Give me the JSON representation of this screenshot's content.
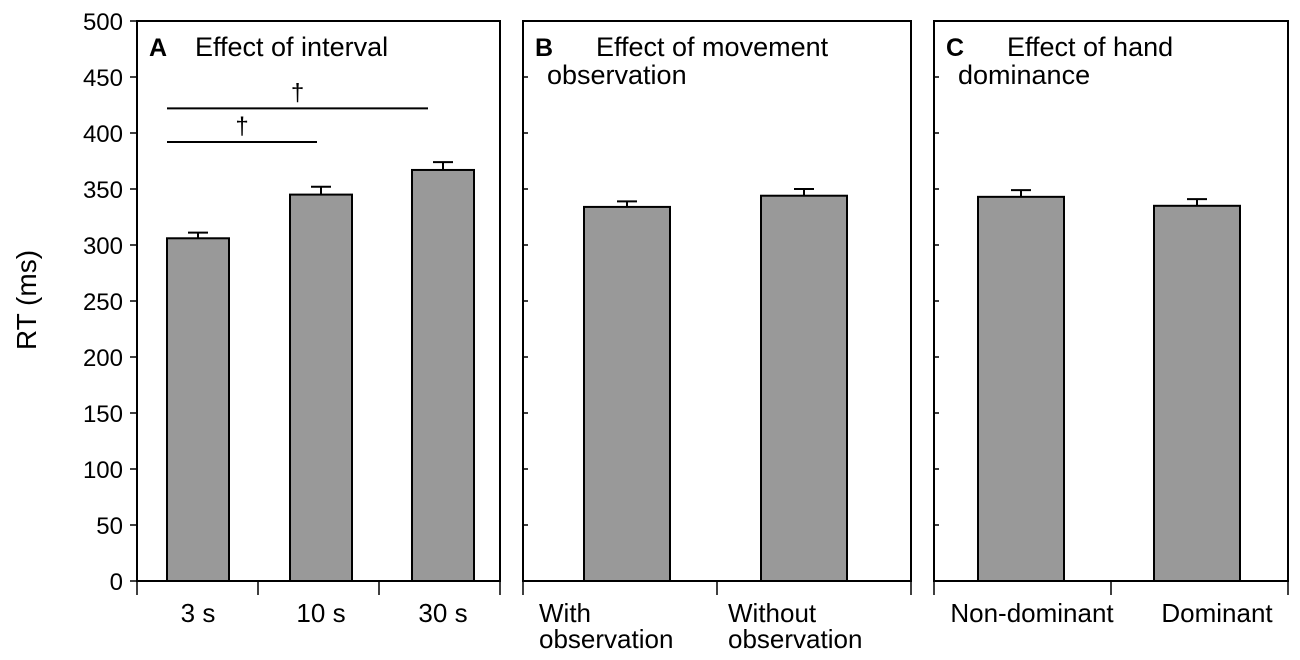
{
  "figure": {
    "ylabel": "RT (ms)",
    "ylim": [
      0,
      500
    ],
    "yticks": [
      0,
      50,
      100,
      150,
      200,
      250,
      300,
      350,
      400,
      450,
      500
    ],
    "colors": {
      "bar_fill": "#999999",
      "stroke": "#000000",
      "background": "#ffffff"
    }
  },
  "chart_data": [
    {
      "type": "bar",
      "letter": "A",
      "title_lines": [
        "Effect of interval"
      ],
      "categories": [
        [
          "3 s"
        ],
        [
          "10 s"
        ],
        [
          "30 s"
        ]
      ],
      "values": [
        306,
        345,
        367
      ],
      "errors": [
        5,
        7,
        7
      ],
      "ylabel": "RT (ms)",
      "ylim": [
        0,
        500
      ],
      "significance": [
        {
          "from": 0,
          "to": 1,
          "y": 392,
          "label": "†"
        },
        {
          "from": 0,
          "to": 2,
          "y": 422,
          "label": "†"
        }
      ]
    },
    {
      "type": "bar",
      "letter": "B",
      "title_lines": [
        "Effect of movement",
        "observation"
      ],
      "categories": [
        [
          "With",
          "observation"
        ],
        [
          "Without",
          "observation"
        ]
      ],
      "values": [
        334,
        344
      ],
      "errors": [
        5,
        6
      ],
      "ylabel": "RT (ms)",
      "ylim": [
        0,
        500
      ],
      "significance": []
    },
    {
      "type": "bar",
      "letter": "C",
      "title_lines": [
        "Effect of hand",
        "dominance"
      ],
      "categories": [
        [
          "Non-dominant"
        ],
        [
          "Dominant"
        ]
      ],
      "values": [
        343,
        335
      ],
      "errors": [
        6,
        6
      ],
      "ylabel": "RT (ms)",
      "ylim": [
        0,
        500
      ],
      "significance": []
    }
  ]
}
